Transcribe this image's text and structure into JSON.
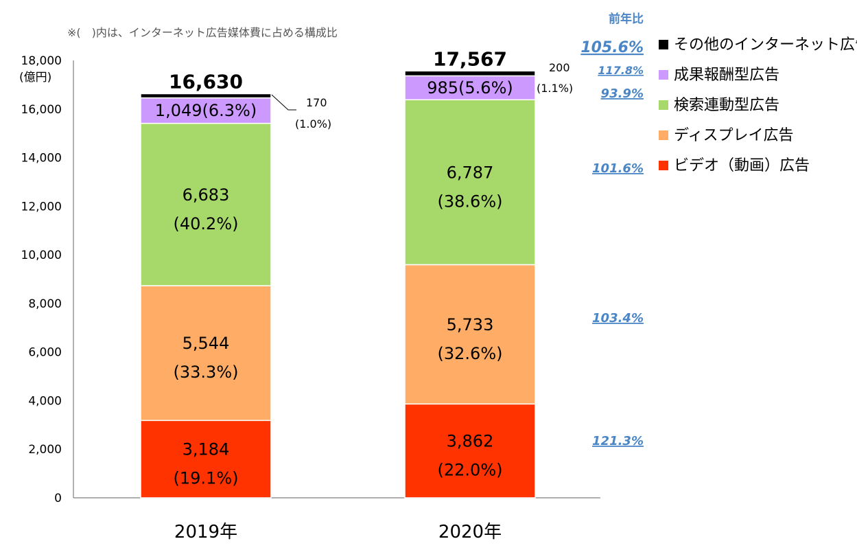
{
  "chart_data": {
    "type": "stacked-bar",
    "note": "※(　)内は、インターネット広告媒体費に占める構成比",
    "y_unit": "(億円)",
    "ylim": [
      0,
      18000
    ],
    "y_ticks": [
      "0",
      "2,000",
      "4,000",
      "6,000",
      "8,000",
      "10,000",
      "12,000",
      "14,000",
      "16,000",
      "18,000"
    ],
    "y_tick_values": [
      0,
      2000,
      4000,
      6000,
      8000,
      10000,
      12000,
      14000,
      16000,
      18000
    ],
    "categories": [
      "2019年",
      "2020年"
    ],
    "totals": [
      "16,630",
      "17,567"
    ],
    "total_values": [
      16630,
      17567
    ],
    "series": [
      {
        "name": "ビデオ（動画）広告",
        "color": "#ff3300",
        "values": [
          3184,
          3862
        ],
        "labels": [
          "3,184",
          "3,862"
        ],
        "shares": [
          "(19.1%)",
          "(22.0%)"
        ]
      },
      {
        "name": "ディスプレイ広告",
        "color": "#ffad66",
        "values": [
          5544,
          5733
        ],
        "labels": [
          "5,544",
          "5,733"
        ],
        "shares": [
          "(33.3%)",
          "(32.6%)"
        ]
      },
      {
        "name": "検索連動型広告",
        "color": "#a6d96a",
        "values": [
          6683,
          6787
        ],
        "labels": [
          "6,683",
          "6,787"
        ],
        "shares": [
          "(40.2%)",
          "(38.6%)"
        ]
      },
      {
        "name": "成果報酬型広告",
        "color": "#cc99ff",
        "values": [
          1049,
          985
        ],
        "inline_labels": [
          "1,049(6.3%)",
          "985(5.6%)"
        ]
      },
      {
        "name": "その他のインターネット広告",
        "color": "#000000",
        "values": [
          170,
          200
        ],
        "labels": [
          "170",
          "200"
        ],
        "shares": [
          "(1.0%)",
          "(1.1%)"
        ]
      }
    ],
    "legend_order": [
      "その他のインターネット広告",
      "成果報酬型広告",
      "検索連動型広告",
      "ディスプレイ広告",
      "ビデオ（動画）広告"
    ],
    "yoy_title": "前年比",
    "yoy": {
      "total": "105.6%",
      "その他のインターネット広告": "117.8%",
      "成果報酬型広告": "93.9%",
      "検索連動型広告": "101.6%",
      "ディスプレイ広告": "103.4%",
      "ビデオ（動画）広告": "121.3%"
    }
  }
}
